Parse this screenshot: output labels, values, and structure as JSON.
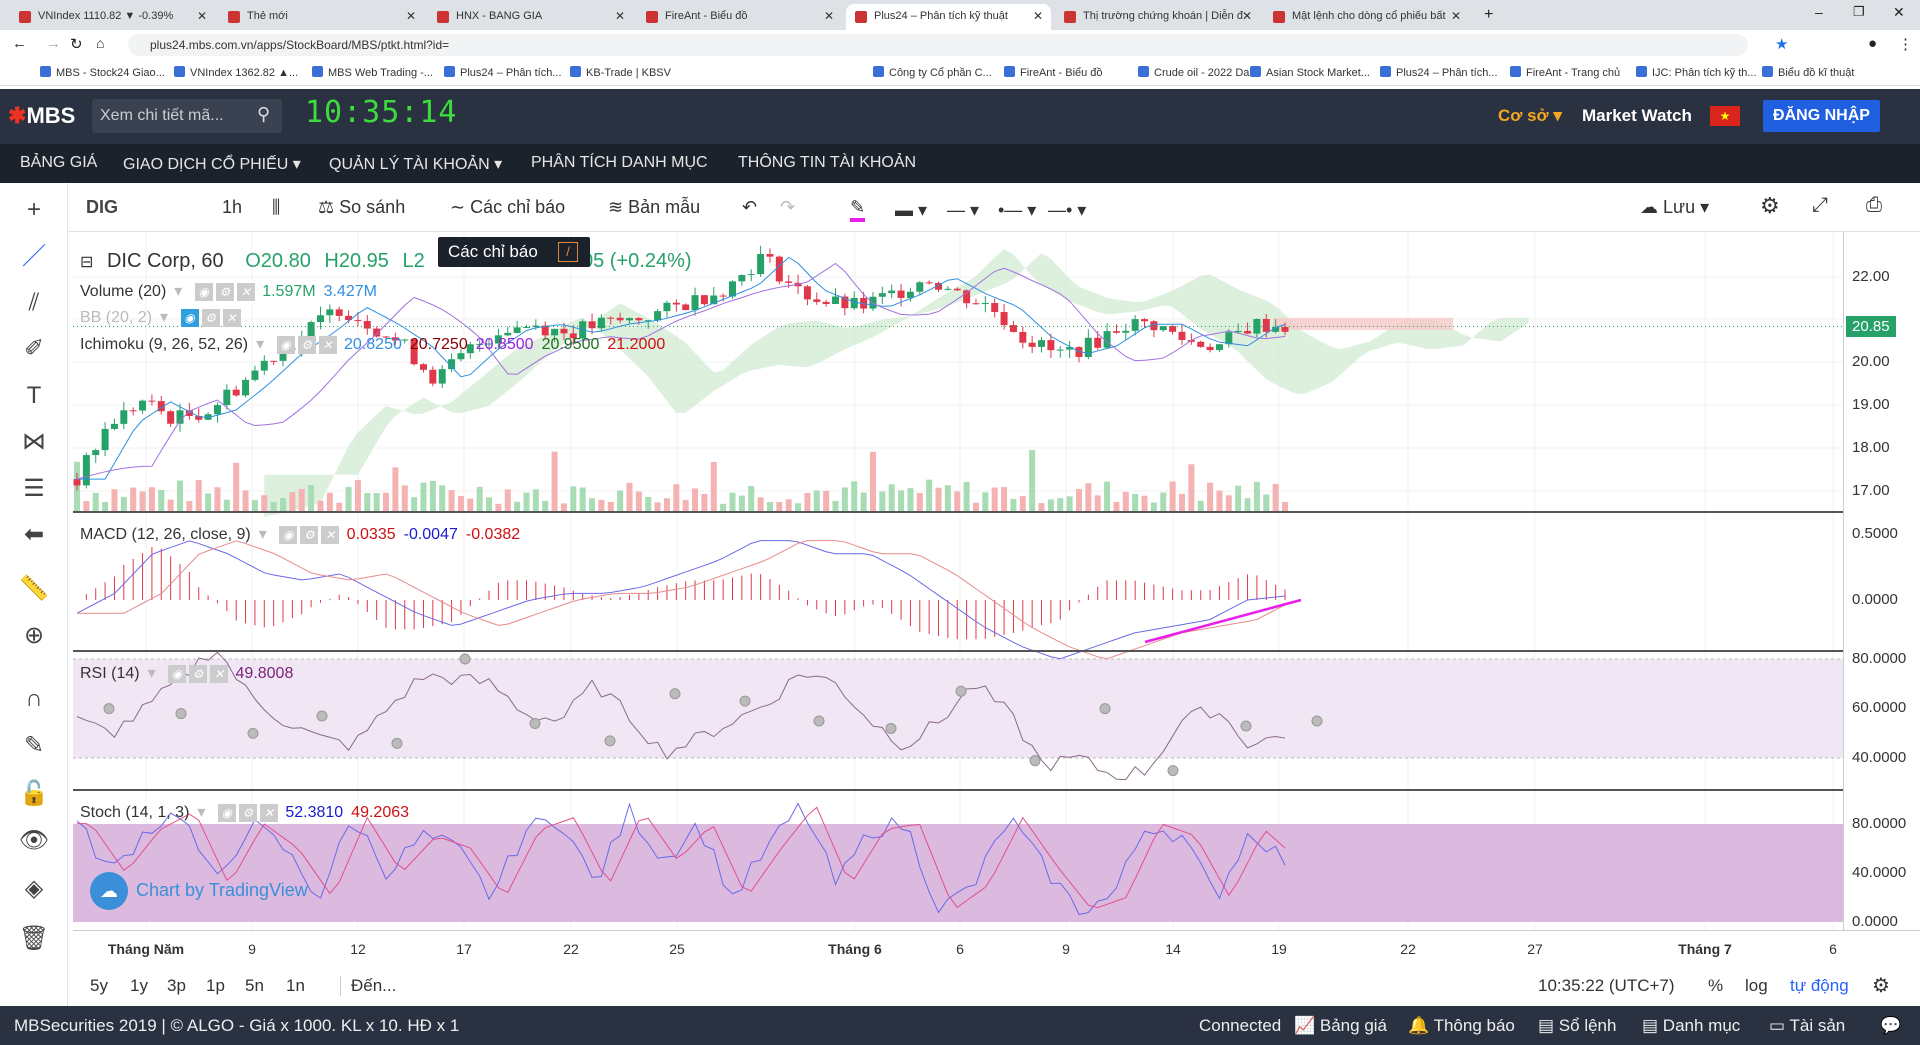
{
  "browser": {
    "tabs": [
      {
        "title": "VNIndex 1110.82 ▼ -0.39%"
      },
      {
        "title": "Thẻ mới"
      },
      {
        "title": "HNX - BANG GIA"
      },
      {
        "title": "FireAnt - Biểu đồ"
      },
      {
        "title": "Plus24 – Phân tích kỹ thuật",
        "active": true
      },
      {
        "title": "Thị trường chứng khoán | Diễn đ"
      },
      {
        "title": "Mật lệnh cho dòng cổ phiếu bất"
      }
    ],
    "url": "plus24.mbs.com.vn/apps/StockBoard/MBS/ptkt.html?id=",
    "bookmarks": [
      "MBS - Stock24 Giao...",
      "VNIndex 1362.82 ▲...",
      "MBS Web Trading -...",
      "Plus24 – Phân tích...",
      "KB-Trade | KBSV",
      "Công ty Cổ phần C...",
      "FireAnt - Biểu đồ",
      "Crude oil - 2022 Da...",
      "Asian Stock Market...",
      "Plus24 – Phân tích...",
      "FireAnt - Trang chủ",
      "IJC: Phân tích kỹ th...",
      "Biểu đồ kĩ thuật"
    ]
  },
  "header": {
    "logo": "MBS",
    "search_placeholder": "Xem chi tiết mã...",
    "clock": "10:35:14",
    "account_type": "Cơ sở",
    "market_watch": "Market Watch",
    "login": "ĐĂNG NHẬP"
  },
  "nav": [
    "BẢNG GIÁ",
    "GIAO DỊCH CỔ PHIẾU",
    "QUẢN LÝ TÀI KHOẢN",
    "PHÂN TÍCH DANH MỤC",
    "THÔNG TIN TÀI KHOẢN"
  ],
  "toolbar": {
    "symbol": "DIG",
    "interval": "1h",
    "compare": "So sánh",
    "indicators": "Các chỉ báo",
    "templates": "Bản mẫu",
    "save": "Lưu"
  },
  "tooltip": {
    "label": "Các chỉ báo",
    "shortcut": "/"
  },
  "legend": {
    "title": "DIC Corp, 60",
    "open": "O20.80",
    "high": "H20.95",
    "low": "L2",
    "change": "05 (+0.24%)",
    "volume": {
      "name": "Volume (20)",
      "v1": "1.597M",
      "v2": "3.427M"
    },
    "bb": {
      "name": "BB (20, 2)"
    },
    "ichimoku": {
      "name": "Ichimoku (9, 26, 52, 26)",
      "v": [
        "20.8250",
        "20.7250",
        "20.8500",
        "20.9500",
        "21.2000"
      ]
    },
    "macd": {
      "name": "MACD (12, 26, close, 9)",
      "v": [
        "0.0335",
        "-0.0047",
        "-0.0382"
      ]
    },
    "rsi": {
      "name": "RSI (14)",
      "v": "49.8008"
    },
    "stoch": {
      "name": "Stoch (14, 1, 3)",
      "v": [
        "52.3810",
        "49.2063"
      ]
    },
    "watermark": "Chart by TradingView"
  },
  "price_axis": {
    "ticks": [
      "22.00",
      "20.00",
      "19.00",
      "18.00",
      "17.00"
    ],
    "current": "20.85",
    "macd_ticks": [
      "0.5000",
      "0.0000"
    ],
    "rsi_ticks": [
      "80.0000",
      "60.0000",
      "40.0000"
    ],
    "stoch_ticks": [
      "80.0000",
      "40.0000",
      "0.0000"
    ]
  },
  "time_axis": [
    "Tháng Năm",
    "9",
    "12",
    "17",
    "22",
    "25",
    "Tháng 6",
    "6",
    "9",
    "14",
    "19",
    "22",
    "27",
    "Tháng 7",
    "6"
  ],
  "ranges": [
    "5y",
    "1y",
    "3p",
    "1p",
    "5n",
    "1n",
    "Đến..."
  ],
  "range_right": {
    "time": "10:35:22 (UTC+7)",
    "percent": "%",
    "log": "log",
    "auto": "tự động"
  },
  "status": {
    "left": "MBSecurities 2019 | © ALGO  -  Giá x 1000. KL x 10. HĐ x 1",
    "connected": "Connected",
    "items": [
      "Bảng giá",
      "Thông báo",
      "Sổ lệnh",
      "Danh mục",
      "Tài sản"
    ]
  },
  "chart_data": {
    "type": "candlestick",
    "price_waypoints": [
      17.3,
      18.6,
      19.1,
      18.7,
      18.9,
      19.5,
      20.2,
      20.7,
      21.3,
      20.9,
      20.4,
      19.6,
      20.3,
      20.8,
      20.9,
      20.7,
      20.9,
      21.0,
      21.2,
      21.5,
      21.8,
      22.5,
      21.7,
      21.4,
      21.3,
      21.6,
      22.0,
      21.6,
      21.3,
      20.6,
      20.2,
      20.4,
      20.9,
      20.9,
      20.5,
      20.4,
      20.9,
      20.85
    ],
    "macd": [
      -0.1,
      0.05,
      0.35,
      0.45,
      0.35,
      0.2,
      0.15,
      0.2,
      0.05,
      -0.1,
      -0.2,
      -0.1,
      0.0,
      0.05,
      0.05,
      0.1,
      0.2,
      0.3,
      0.45,
      0.45,
      0.35,
      0.35,
      0.2,
      0.0,
      -0.2,
      -0.35,
      -0.45,
      -0.35,
      -0.25,
      -0.2,
      -0.15,
      0.0,
      0.03
    ],
    "rsi": [
      55,
      50,
      60,
      72,
      85,
      65,
      55,
      48,
      45,
      60,
      73,
      72,
      70,
      58,
      55,
      70,
      57,
      42,
      48,
      55,
      62,
      75,
      70,
      55,
      45,
      55,
      70,
      58,
      37,
      40,
      33,
      35,
      55,
      60,
      45,
      50
    ],
    "stoch": [
      80,
      40,
      75,
      90,
      30,
      80,
      60,
      20,
      85,
      40,
      70,
      60,
      20,
      75,
      85,
      30,
      90,
      50,
      80,
      20,
      60,
      95,
      30,
      75,
      80,
      10,
      30,
      85,
      45,
      10,
      20,
      80,
      70,
      20,
      75,
      50
    ]
  }
}
